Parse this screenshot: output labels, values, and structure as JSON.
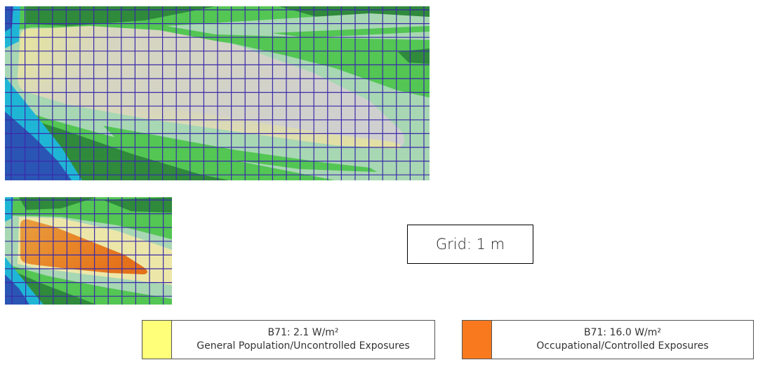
{
  "plots": {
    "top": {
      "label": ""
    },
    "bottom": {
      "label": ""
    }
  },
  "grid_note": {
    "text": "Grid: 1 m"
  },
  "legend": {
    "general": {
      "line1": "B71: 2.1 W/m²",
      "line2": "General Population/Uncontrolled Exposures",
      "color": "#ffff7a"
    },
    "occupational": {
      "line1": "B71: 16.0 W/m²",
      "line2": "Occupational/Controlled Exposures",
      "color": "#f97a1e"
    }
  },
  "colors": {
    "deep_blue": "#2b55b5",
    "cyan": "#1fb6d6",
    "dark_green": "#2f8a3b",
    "green": "#53c653",
    "pale_green": "#a8d7b3",
    "grid_line": "#3a2aa8",
    "beam_gray": "#c8c8c8",
    "beam_yellow": "#e8e69a",
    "beam_orange": "#e87820"
  }
}
